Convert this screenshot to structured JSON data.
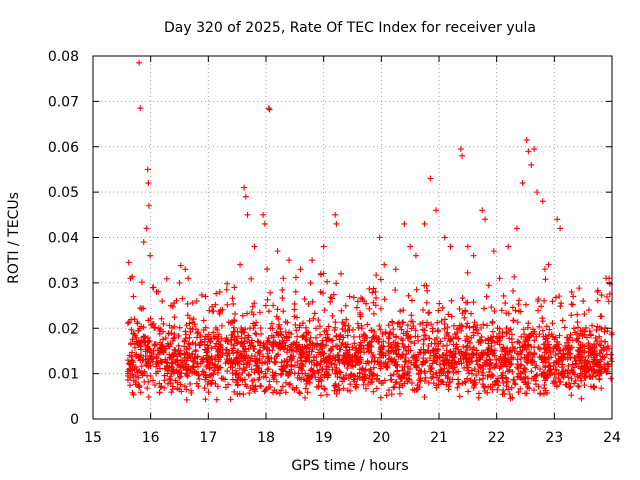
{
  "chart_data": {
    "type": "scatter",
    "title": "Day 320 of 2025, Rate Of TEC Index for receiver yula",
    "xlabel": "GPS time / hours",
    "ylabel": "ROTI / TECUs",
    "xlim": [
      15,
      24
    ],
    "ylim": [
      0,
      0.08
    ],
    "xticks": [
      "15",
      "16",
      "17",
      "18",
      "19",
      "20",
      "21",
      "22",
      "23",
      "24"
    ],
    "yticks": [
      "0",
      "0.01",
      "0.02",
      "0.03",
      "0.04",
      "0.05",
      "0.06",
      "0.07",
      "0.08"
    ],
    "grid": true,
    "marker": "+",
    "color": "#ff0000",
    "series": [
      {
        "values": [
          [
            15.62,
            0.0345
          ],
          [
            15.65,
            0.031
          ],
          [
            15.7,
            0.027
          ],
          [
            15.72,
            0.022
          ],
          [
            15.8,
            0.0785
          ],
          [
            15.82,
            0.0685
          ],
          [
            15.88,
            0.039
          ],
          [
            15.93,
            0.042
          ],
          [
            15.95,
            0.055
          ],
          [
            15.96,
            0.052
          ],
          [
            15.97,
            0.047
          ],
          [
            15.99,
            0.036
          ],
          [
            16.05,
            0.029
          ],
          [
            16.1,
            0.028
          ],
          [
            16.2,
            0.026
          ],
          [
            16.35,
            0.025
          ],
          [
            16.5,
            0.03
          ],
          [
            16.6,
            0.033
          ],
          [
            16.65,
            0.031
          ],
          [
            16.8,
            0.026
          ],
          [
            16.95,
            0.027
          ],
          [
            17.2,
            0.028
          ],
          [
            17.45,
            0.029
          ],
          [
            17.55,
            0.034
          ],
          [
            17.62,
            0.051
          ],
          [
            17.65,
            0.049
          ],
          [
            17.68,
            0.045
          ],
          [
            17.8,
            0.038
          ],
          [
            17.95,
            0.045
          ],
          [
            17.98,
            0.043
          ],
          [
            18.05,
            0.0685
          ],
          [
            18.06,
            0.0682
          ],
          [
            18.2,
            0.037
          ],
          [
            18.3,
            0.031
          ],
          [
            18.4,
            0.035
          ],
          [
            18.6,
            0.033
          ],
          [
            18.8,
            0.035
          ],
          [
            18.95,
            0.032
          ],
          [
            19.0,
            0.038
          ],
          [
            19.2,
            0.045
          ],
          [
            19.22,
            0.043
          ],
          [
            19.3,
            0.032
          ],
          [
            19.45,
            0.027
          ],
          [
            19.7,
            0.026
          ],
          [
            19.9,
            0.028
          ],
          [
            19.97,
            0.04
          ],
          [
            20.05,
            0.034
          ],
          [
            20.25,
            0.033
          ],
          [
            20.4,
            0.043
          ],
          [
            20.5,
            0.038
          ],
          [
            20.6,
            0.036
          ],
          [
            20.75,
            0.043
          ],
          [
            20.85,
            0.053
          ],
          [
            20.95,
            0.046
          ],
          [
            21.1,
            0.04
          ],
          [
            21.2,
            0.038
          ],
          [
            21.38,
            0.0595
          ],
          [
            21.4,
            0.058
          ],
          [
            21.5,
            0.038
          ],
          [
            21.6,
            0.036
          ],
          [
            21.75,
            0.046
          ],
          [
            21.8,
            0.044
          ],
          [
            21.95,
            0.037
          ],
          [
            22.05,
            0.031
          ],
          [
            22.2,
            0.038
          ],
          [
            22.35,
            0.042
          ],
          [
            22.45,
            0.052
          ],
          [
            22.52,
            0.0615
          ],
          [
            22.55,
            0.059
          ],
          [
            22.6,
            0.056
          ],
          [
            22.65,
            0.0595
          ],
          [
            22.7,
            0.05
          ],
          [
            22.8,
            0.048
          ],
          [
            22.9,
            0.034
          ],
          [
            23.05,
            0.044
          ],
          [
            23.1,
            0.042
          ],
          [
            23.3,
            0.028
          ],
          [
            23.5,
            0.026
          ],
          [
            23.75,
            0.028
          ],
          [
            23.95,
            0.031
          ]
        ]
      }
    ],
    "dense_band": {
      "x_range": [
        15.6,
        24.0
      ],
      "y_center": 0.013,
      "y_spread": 0.009
    }
  }
}
